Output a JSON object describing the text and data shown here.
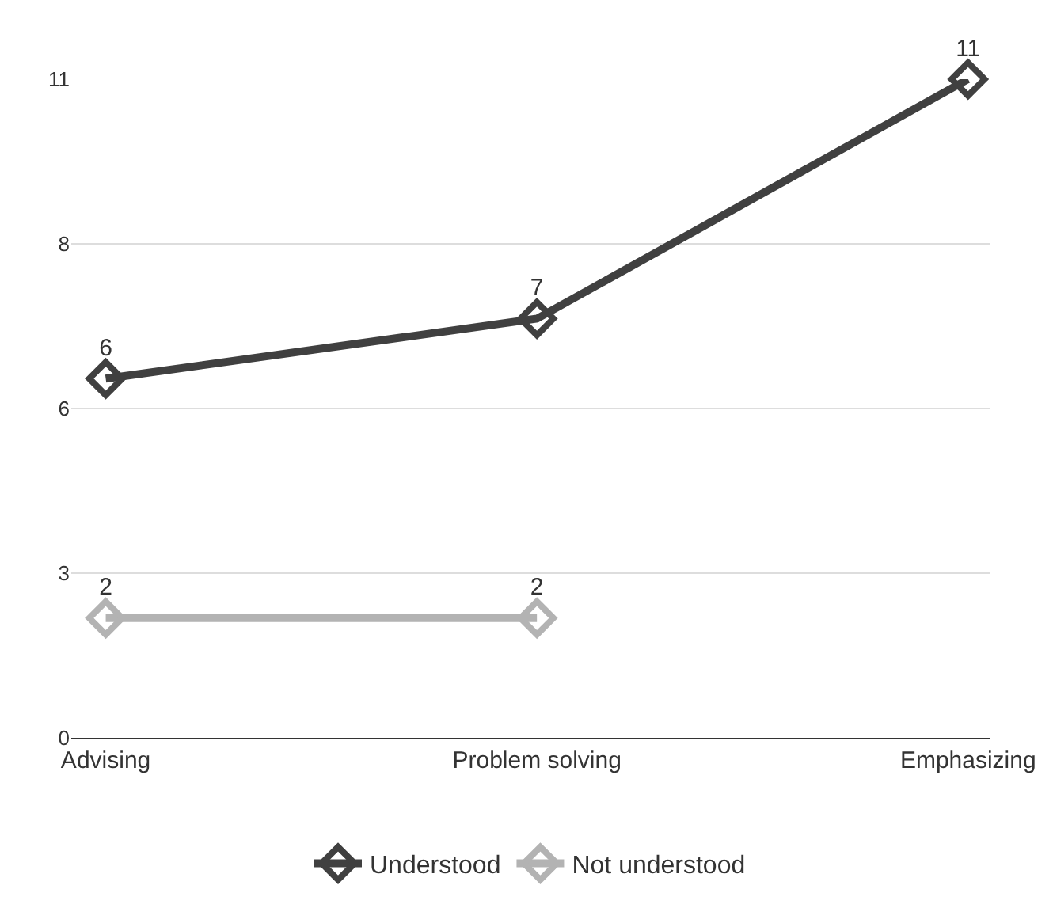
{
  "chart_data": {
    "type": "line",
    "categories": [
      "Advising",
      "Problem solving",
      "Emphasizing"
    ],
    "series": [
      {
        "name": "Understood",
        "color": "#404040",
        "values": [
          6,
          7,
          11
        ]
      },
      {
        "name": "Not understood",
        "color": "#b3b3b3",
        "values": [
          2,
          2,
          null
        ]
      }
    ],
    "ylim": [
      0,
      11
    ],
    "yticks": [
      0,
      {
        "value": 2.75,
        "label": "3"
      },
      {
        "value": 5.5,
        "label": "6"
      },
      {
        "value": 8.25,
        "label": "8"
      },
      11
    ],
    "grid": "y",
    "legend": "bottom",
    "marker": "diamond",
    "line_style": "solid",
    "data_labels": true
  }
}
